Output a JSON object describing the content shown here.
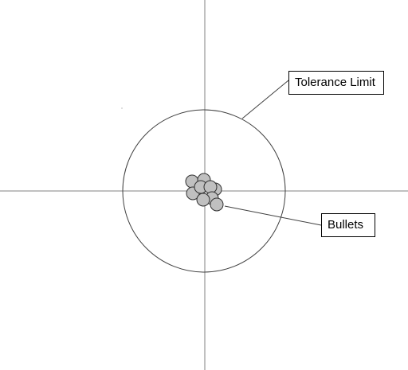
{
  "labels": {
    "tolerance_limit": "Tolerance Limit",
    "bullets": "Bullets"
  },
  "colors": {
    "axis": "#808080",
    "circle": "#404040",
    "bullet_fill": "#c0c0c0",
    "bullet_stroke": "#303030",
    "leader": "#404040",
    "background": "#ffffff"
  },
  "bullet_count": 9
}
